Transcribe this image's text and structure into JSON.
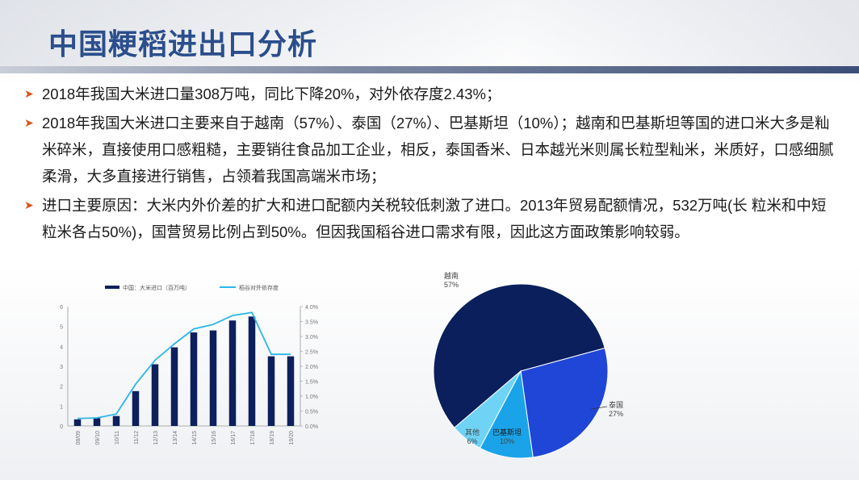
{
  "slide": {
    "title": "中国粳稻进出口分析",
    "bullets": [
      "2018年我国大米进口量308万吨，同比下降20%，对外依存度2.43%；",
      "2018年我国大米进口主要来自于越南（57%）、泰国（27%）、巴基斯坦（10%）；越南和巴基斯坦等国的进口米大多是籼米碎米，直接使用口感粗糙，主要销往食品加工企业，相反，泰国香米、日本越光米则属长粒型籼米，米质好，口感细腻柔滑，大多直接进行销售，占领着我国高端米市场；",
      "进口主要原因：大米内外价差的扩大和进口配额内关税较低刺激了进口。2013年贸易配额情况，532万吨(长 粒米和中短粒米各占50%)，国营贸易比例占到50%。但因我国稻谷进口需求有限，因此这方面政策影响较弱。"
    ],
    "bullet_icon": "arrow-right-icon"
  },
  "chart_data": [
    {
      "type": "bar",
      "categories": [
        "08/09",
        "09/10",
        "10/11",
        "11/12",
        "12/13",
        "13/14",
        "14/15",
        "15/16",
        "16/17",
        "17/18",
        "18/19",
        "19/20"
      ],
      "series": [
        {
          "name": "中国：大米进口（百万吨）",
          "type": "bar",
          "color": "#0d1f5c",
          "axis": "left",
          "values": [
            0.33,
            0.39,
            0.5,
            1.75,
            3.1,
            3.95,
            4.7,
            4.8,
            5.3,
            5.5,
            3.5,
            3.5
          ]
        },
        {
          "name": "稻谷对外依存度",
          "type": "line",
          "color": "#29b6e8",
          "axis": "right",
          "values": [
            0.25,
            0.27,
            0.4,
            1.4,
            2.2,
            2.75,
            3.25,
            3.4,
            3.7,
            3.8,
            2.4,
            2.4
          ]
        }
      ],
      "left_axis": {
        "ticks": [
          "0",
          "1",
          "2",
          "3",
          "4",
          "5",
          "6"
        ],
        "ylim": [
          0,
          6
        ]
      },
      "right_axis": {
        "ticks": [
          "0.0%",
          "0.5%",
          "1.0%",
          "1.5%",
          "2.0%",
          "2.5%",
          "3.0%",
          "3.5%",
          "4.0%"
        ],
        "ylim": [
          0,
          4
        ]
      },
      "legend_placement": "top",
      "grid": false
    },
    {
      "type": "pie",
      "slices": [
        {
          "label": "越南",
          "pct_label": "57%",
          "value": 57,
          "color": "#0a1f5c"
        },
        {
          "label": "泰国",
          "pct_label": "27%",
          "value": 27,
          "color": "#1f46d6"
        },
        {
          "label": "巴基斯坦",
          "pct_label": "10%",
          "value": 10,
          "color": "#1aa3e8"
        },
        {
          "label": "其他",
          "pct_label": "6%",
          "value": 6,
          "color": "#6fd3f5"
        }
      ]
    }
  ]
}
